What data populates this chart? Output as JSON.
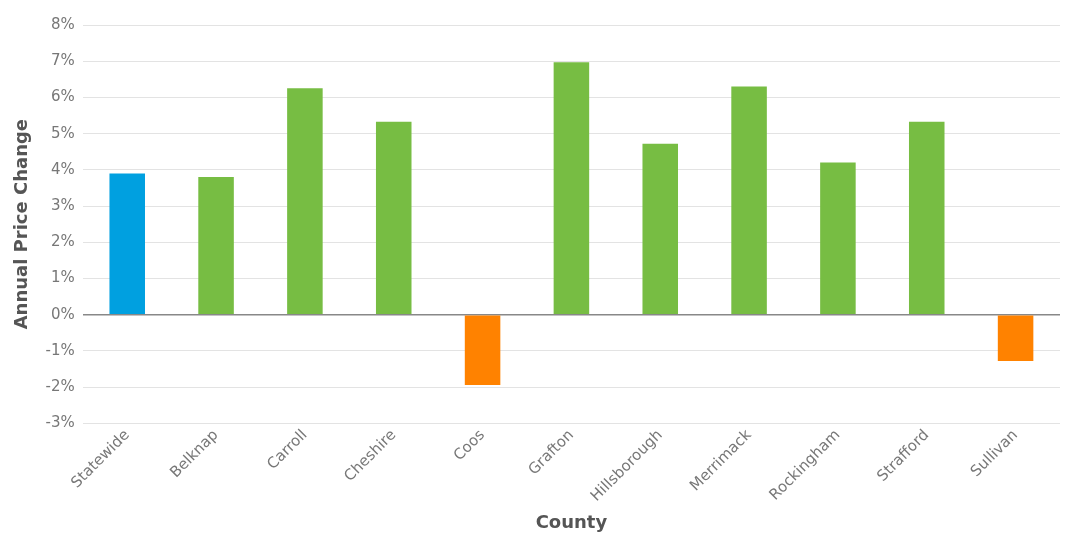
{
  "chart_data": {
    "type": "bar",
    "xlabel": "County",
    "ylabel": "Annual Price Change",
    "categories": [
      "Statewide",
      "Belknap",
      "Carroll",
      "Cheshire",
      "Coos",
      "Grafton",
      "Hillsborough",
      "Merrimack",
      "Rockingham",
      "Strafford",
      "Sullivan"
    ],
    "values": [
      3.9,
      3.8,
      6.25,
      5.33,
      -1.94,
      6.97,
      4.72,
      6.3,
      4.2,
      5.33,
      -1.28
    ],
    "colors": [
      "#00a0e0",
      "#77bd43",
      "#77bd43",
      "#77bd43",
      "#ff8200",
      "#77bd43",
      "#77bd43",
      "#77bd43",
      "#77bd43",
      "#77bd43",
      "#ff8200"
    ],
    "ylim": [
      -3,
      8
    ],
    "yticks": [
      {
        "value": -3,
        "label": "-3%"
      },
      {
        "value": -2,
        "label": "-2%"
      },
      {
        "value": -1,
        "label": "-1%"
      },
      {
        "value": 0,
        "label": "0%"
      },
      {
        "value": 1,
        "label": "1%"
      },
      {
        "value": 2,
        "label": "2%"
      },
      {
        "value": 3,
        "label": "3%"
      },
      {
        "value": 4,
        "label": "4%"
      },
      {
        "value": 5,
        "label": "5%"
      },
      {
        "value": 6,
        "label": "6%"
      },
      {
        "value": 7,
        "label": "7%"
      },
      {
        "value": 8,
        "label": "8%"
      }
    ],
    "grid": "y",
    "legend": false
  }
}
